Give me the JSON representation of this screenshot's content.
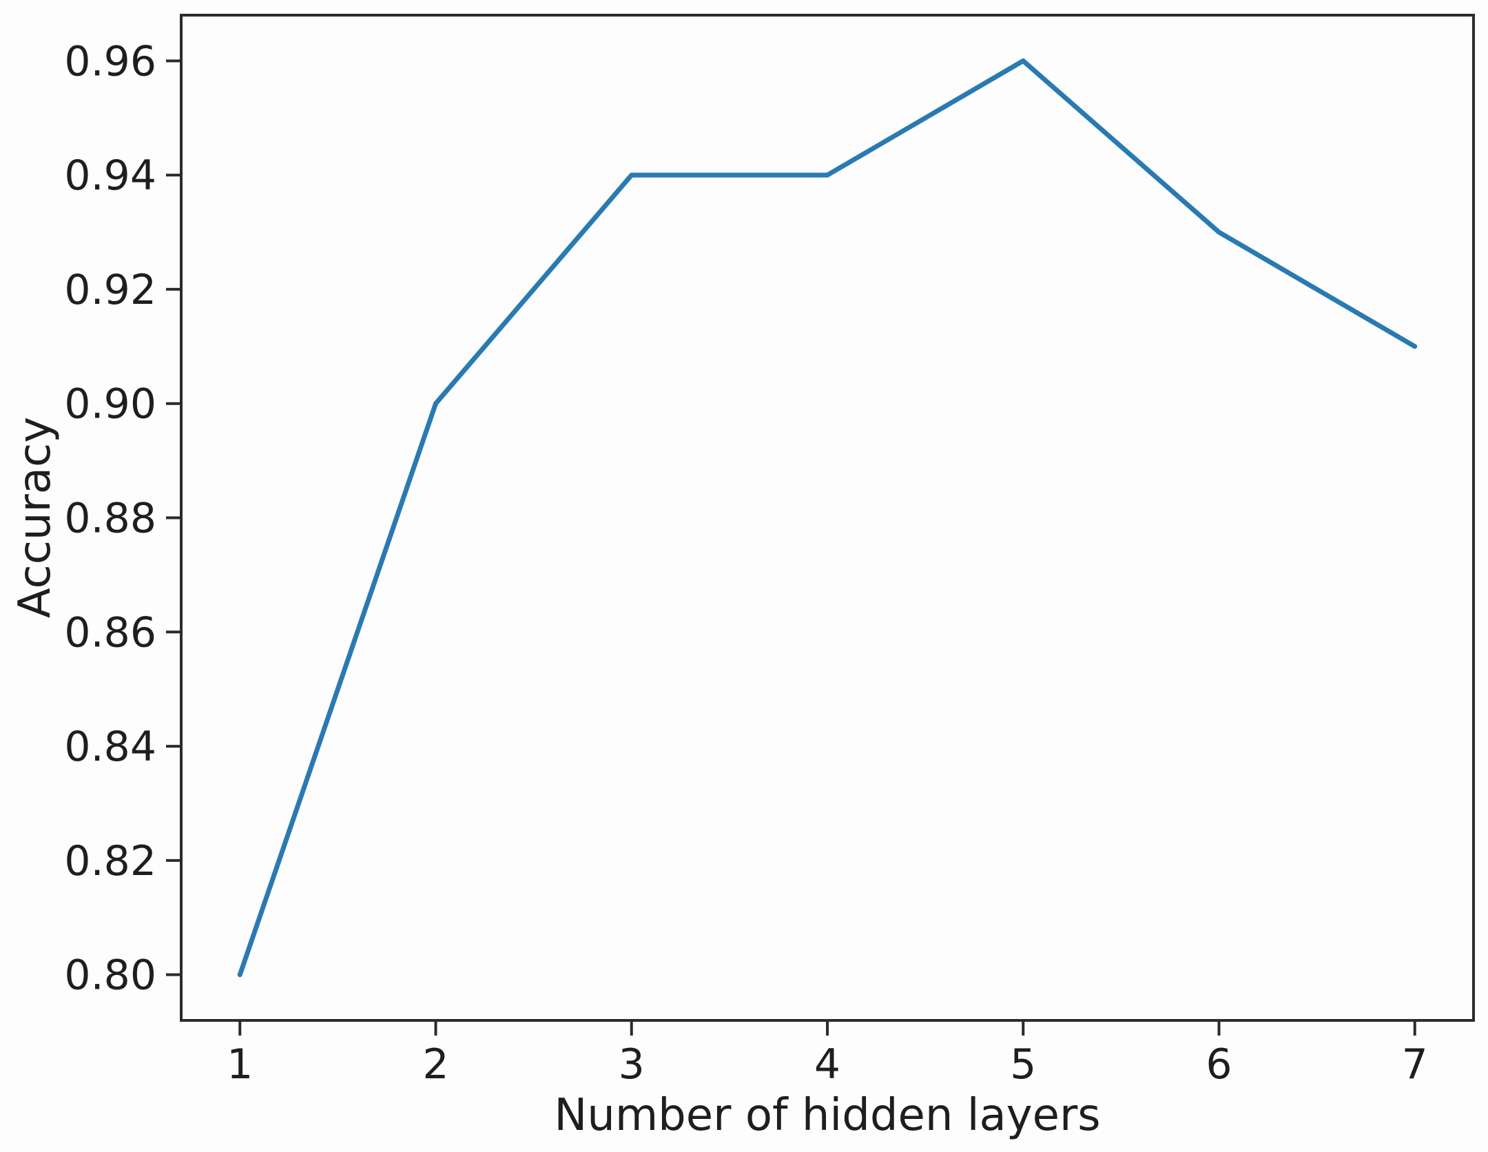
{
  "figure": {
    "background": "#fdfdfd",
    "line_color": "#2a7ab2",
    "spine_color": "#2b2b2b",
    "text_color": "#1e1e1e"
  },
  "chart_data": {
    "type": "line",
    "title": "",
    "xlabel": "Number of hidden layers",
    "ylabel": "Accuracy",
    "x": [
      1,
      2,
      3,
      4,
      5,
      6,
      7
    ],
    "values": [
      0.8,
      0.9,
      0.94,
      0.94,
      0.96,
      0.93,
      0.91
    ],
    "series_name": "Accuracy",
    "x_ticks": [
      "1",
      "2",
      "3",
      "4",
      "5",
      "6",
      "7"
    ],
    "y_ticks": [
      "0.80",
      "0.82",
      "0.84",
      "0.86",
      "0.88",
      "0.90",
      "0.92",
      "0.94",
      "0.96"
    ],
    "xlim": [
      0.7,
      7.3
    ],
    "ylim": [
      0.792,
      0.968
    ],
    "grid": false,
    "legend": null,
    "markers": false
  }
}
